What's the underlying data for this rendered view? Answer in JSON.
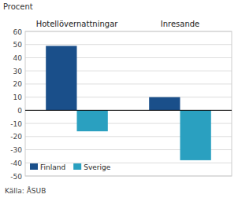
{
  "chart_data": {
    "type": "bar",
    "ylabel": "Procent",
    "categories": [
      "Hotellövernattningar",
      "Inresande"
    ],
    "series": [
      {
        "name": "Finland",
        "color": "#1a4f8a",
        "values": [
          49,
          10
        ]
      },
      {
        "name": "Sverige",
        "color": "#2aa0c0",
        "values": [
          -16,
          -38
        ]
      }
    ],
    "ylim": [
      -50,
      60
    ],
    "yticks": [
      -50,
      -40,
      -30,
      -20,
      -10,
      0,
      10,
      20,
      30,
      40,
      50,
      60
    ],
    "grid": true,
    "legend": "lower left",
    "annotations": [
      "Källa: ÅSUB"
    ]
  }
}
